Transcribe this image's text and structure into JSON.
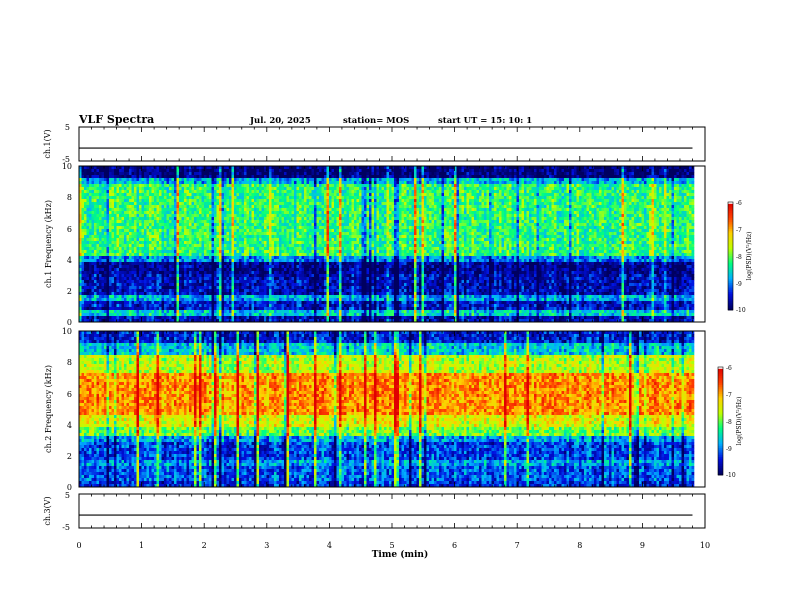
{
  "header": {
    "title": "VLF Spectra",
    "date": "Jul. 20, 2025",
    "station": "station= MOS",
    "start": "start UT =  15: 10: 1"
  },
  "colors": {
    "background": "#ffffff",
    "axis": "#000000",
    "colormap": [
      "#000060",
      "#0010e0",
      "#00b0ff",
      "#00ff80",
      "#c0ff00",
      "#ffd000",
      "#ff4000",
      "#e00000",
      "#ffffff"
    ]
  },
  "chart_data": [
    {
      "type": "line",
      "id": "ch1v",
      "ylabel": "ch.1(V)",
      "xlim": [
        0,
        10
      ],
      "ylim": [
        -5,
        5
      ],
      "ytick_labels": [
        "5",
        "-5"
      ],
      "series": [
        {
          "x": [
            0,
            9.8
          ],
          "y": [
            -1.2,
            -1.2
          ]
        }
      ]
    },
    {
      "type": "heatmap",
      "id": "ch1",
      "ylabel": "ch.1 Frequency (kHz)",
      "xlim": [
        0,
        10
      ],
      "ylim": [
        0,
        10
      ],
      "ytick_labels": [
        "0",
        "2",
        "4",
        "6",
        "8",
        "10"
      ],
      "data_end_min": 9.8,
      "bands": [
        {
          "from_khz": 0.0,
          "to_khz": 0.4,
          "level": -9.6
        },
        {
          "from_khz": 0.4,
          "to_khz": 0.7,
          "level": -8.6
        },
        {
          "from_khz": 0.7,
          "to_khz": 1.3,
          "level": -9.5
        },
        {
          "from_khz": 1.3,
          "to_khz": 1.7,
          "level": -8.8
        },
        {
          "from_khz": 1.7,
          "to_khz": 3.0,
          "level": -9.6
        },
        {
          "from_khz": 3.0,
          "to_khz": 3.8,
          "level": -9.8
        },
        {
          "from_khz": 3.8,
          "to_khz": 4.3,
          "level": -9.0
        },
        {
          "from_khz": 4.3,
          "to_khz": 8.8,
          "level": -8.2
        },
        {
          "from_khz": 8.8,
          "to_khz": 9.2,
          "level": -8.8
        },
        {
          "from_khz": 9.2,
          "to_khz": 10.0,
          "level": -9.9
        }
      ],
      "colorbar": {
        "min": -10,
        "max": -6,
        "tick_labels": [
          "-6",
          "-7",
          "-8",
          "-9",
          "-10"
        ],
        "label": "log(PSD)(V²/Hz)"
      }
    },
    {
      "type": "heatmap",
      "id": "ch2",
      "ylabel": "ch.2 Frequency (kHz)",
      "xlim": [
        0,
        10
      ],
      "ylim": [
        0,
        10
      ],
      "ytick_labels": [
        "0",
        "2",
        "4",
        "6",
        "8",
        "10"
      ],
      "data_end_min": 9.8,
      "bands": [
        {
          "from_khz": 0.0,
          "to_khz": 0.4,
          "level": -9.4
        },
        {
          "from_khz": 0.4,
          "to_khz": 1.3,
          "level": -9.2
        },
        {
          "from_khz": 1.3,
          "to_khz": 1.7,
          "level": -8.9
        },
        {
          "from_khz": 1.7,
          "to_khz": 2.8,
          "level": -9.3
        },
        {
          "from_khz": 2.8,
          "to_khz": 3.2,
          "level": -8.9
        },
        {
          "from_khz": 3.2,
          "to_khz": 3.8,
          "level": -8.0
        },
        {
          "from_khz": 3.8,
          "to_khz": 4.6,
          "level": -7.5
        },
        {
          "from_khz": 4.6,
          "to_khz": 7.4,
          "level": -6.9
        },
        {
          "from_khz": 7.4,
          "to_khz": 8.4,
          "level": -7.7
        },
        {
          "from_khz": 8.4,
          "to_khz": 9.3,
          "level": -8.7
        },
        {
          "from_khz": 9.3,
          "to_khz": 10.0,
          "level": -9.5
        }
      ],
      "colorbar": {
        "min": -10,
        "max": -6,
        "tick_labels": [
          "-6",
          "-7",
          "-8",
          "-9",
          "-10"
        ],
        "label": "log(PSD)(V²/Hz)"
      }
    },
    {
      "type": "line",
      "id": "ch3v",
      "ylabel": "ch.3(V)",
      "xlim": [
        0,
        10
      ],
      "ylim": [
        -5,
        5
      ],
      "ytick_labels": [
        "5",
        "-5"
      ],
      "series": [
        {
          "x": [
            0,
            9.8
          ],
          "y": [
            -1.2,
            -1.2
          ]
        }
      ]
    }
  ],
  "x_axis": {
    "label": "Time (min)",
    "tick_labels": [
      "0",
      "1",
      "2",
      "3",
      "4",
      "5",
      "6",
      "7",
      "8",
      "9",
      "10"
    ]
  }
}
